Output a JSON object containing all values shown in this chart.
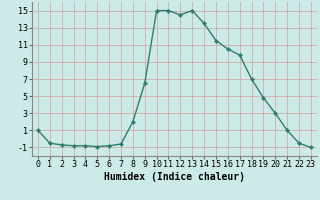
{
  "x": [
    0,
    1,
    2,
    3,
    4,
    5,
    6,
    7,
    8,
    9,
    10,
    11,
    12,
    13,
    14,
    15,
    16,
    17,
    18,
    19,
    20,
    21,
    22,
    23
  ],
  "y": [
    1,
    -0.5,
    -0.7,
    -0.8,
    -0.8,
    -0.9,
    -0.8,
    -0.6,
    2.0,
    6.5,
    15.0,
    15.0,
    14.5,
    15.0,
    13.5,
    11.5,
    10.5,
    9.8,
    7.0,
    4.8,
    3.0,
    1.0,
    -0.5,
    -1.0
  ],
  "bg_color": "#cceae7",
  "grid_color_major": "#aad4d0",
  "grid_color_minor": "#c2e4e0",
  "line_color": "#2e7d6e",
  "marker_color": "#2e7d6e",
  "xlabel": "Humidex (Indice chaleur)",
  "xlim": [
    -0.5,
    23.5
  ],
  "ylim": [
    -2,
    16
  ],
  "yticks": [
    -1,
    1,
    3,
    5,
    7,
    9,
    11,
    13,
    15
  ],
  "xticks": [
    0,
    1,
    2,
    3,
    4,
    5,
    6,
    7,
    8,
    9,
    10,
    11,
    12,
    13,
    14,
    15,
    16,
    17,
    18,
    19,
    20,
    21,
    22,
    23
  ],
  "xlabel_fontsize": 7,
  "tick_fontsize": 6
}
